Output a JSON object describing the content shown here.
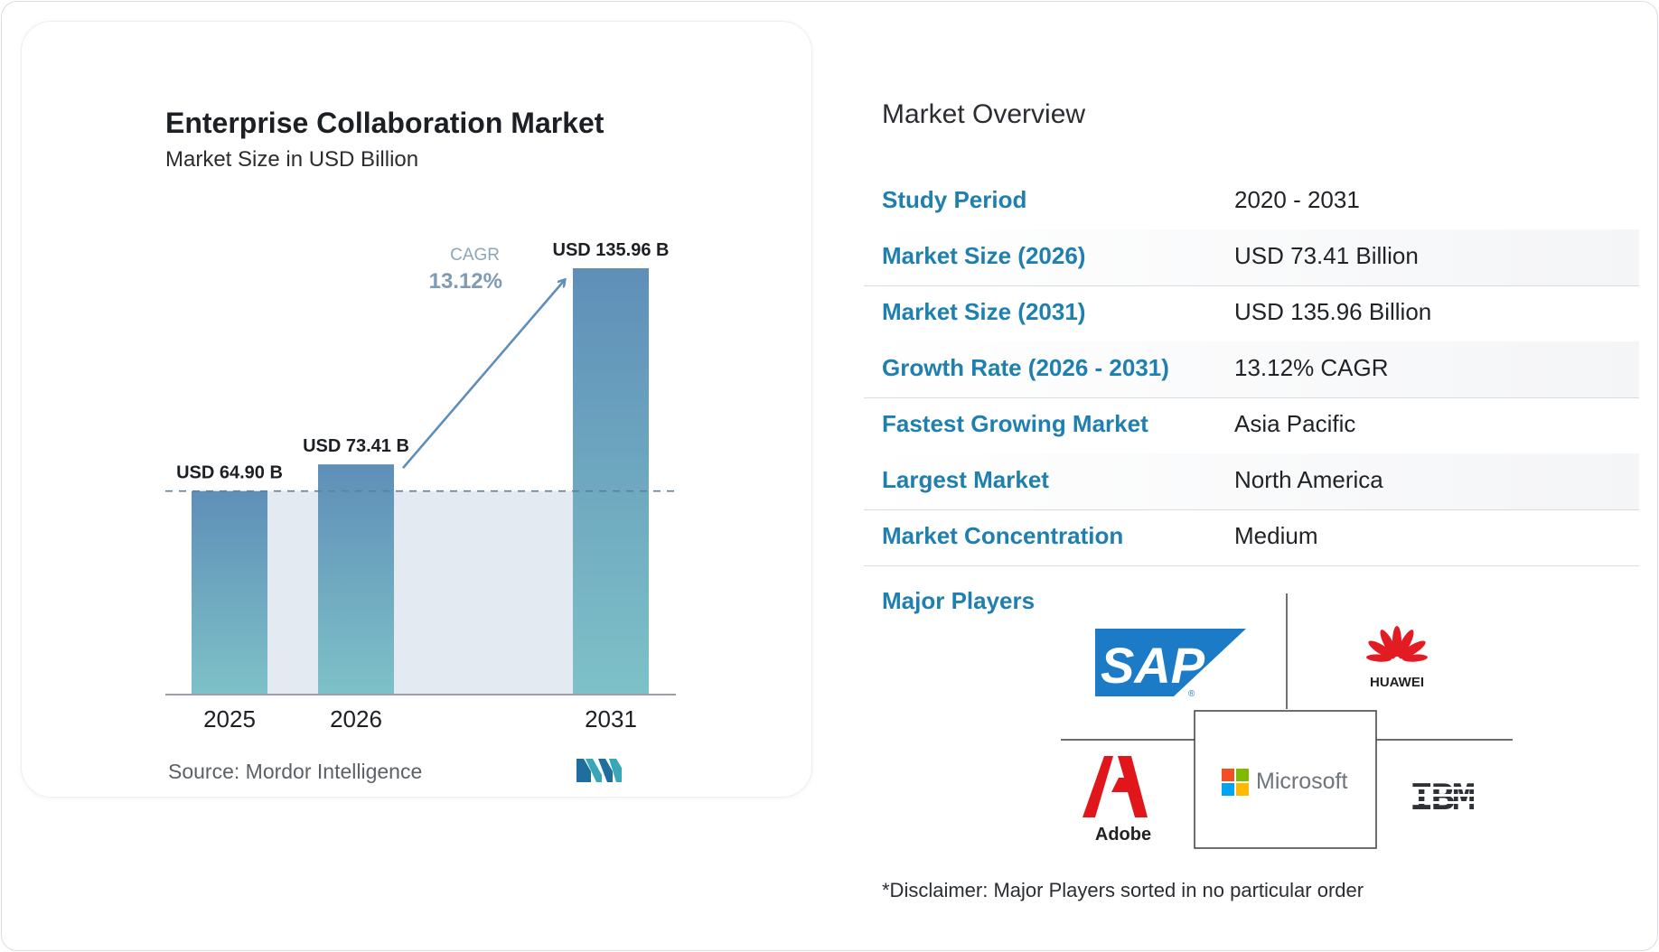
{
  "chart_data": {
    "type": "bar",
    "title": "Enterprise Collaboration Market",
    "subtitle": "Market Size in USD Billion",
    "categories": [
      "2025",
      "2026",
      "2031"
    ],
    "values": [
      64.9,
      73.41,
      135.96
    ],
    "value_labels": [
      "USD 64.90 B",
      "USD 73.41 B",
      "USD 135.96 B"
    ],
    "cagr_label": "CAGR",
    "cagr_value": "13.12%",
    "ylim": [
      0,
      140
    ],
    "grid": false,
    "source": "Source:  Mordor Intelligence"
  },
  "overview": {
    "title": "Market Overview",
    "rows": [
      {
        "label": "Study Period",
        "value": "2020 - 2031"
      },
      {
        "label": "Market Size (2026)",
        "value": "USD 73.41 Billion"
      },
      {
        "label": "Market Size (2031)",
        "value": "USD 135.96 Billion"
      },
      {
        "label": "Growth Rate (2026 - 2031)",
        "value": "13.12% CAGR"
      },
      {
        "label": "Fastest Growing Market",
        "value": "Asia Pacific"
      },
      {
        "label": "Largest Market",
        "value": "North America"
      },
      {
        "label": "Market Concentration",
        "value": "Medium"
      }
    ]
  },
  "major_players": {
    "label": "Major Players",
    "players": [
      "SAP",
      "HUAWEI",
      "Adobe",
      "Microsoft",
      "IBM"
    ]
  },
  "disclaimer": "*Disclaimer: Major Players sorted in no particular order",
  "colors": {
    "bar_top": "#5f8fb8",
    "bar_bottom": "#7ec1c8",
    "area_fill": "#e3eaf2",
    "accent_blue": "#1f7fae",
    "arrow": "#5f8fb8"
  }
}
